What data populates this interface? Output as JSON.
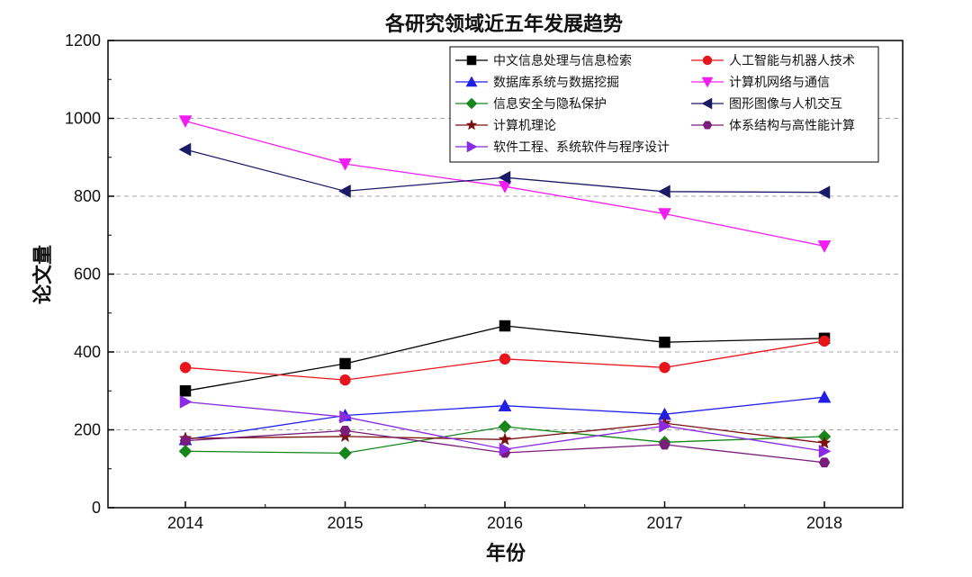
{
  "chart_data": {
    "type": "line",
    "title": "各研究领域近五年发展趋势",
    "xlabel": "年份",
    "ylabel": "论文量",
    "x": [
      "2014",
      "2015",
      "2016",
      "2017",
      "2018"
    ],
    "ylim": [
      0,
      1200
    ],
    "yticks": [
      0,
      200,
      400,
      600,
      800,
      1000,
      1200
    ],
    "grid": "horizontal dashed at major ticks",
    "legend_position": "top-right",
    "series": [
      {
        "name": "中文信息处理与信息检索",
        "color": "#000000",
        "marker": "square",
        "values": [
          300,
          370,
          467,
          425,
          435
        ]
      },
      {
        "name": "人工智能与机器人技术",
        "color": "#e8141b",
        "marker": "circle",
        "values": [
          360,
          328,
          382,
          360,
          428
        ]
      },
      {
        "name": "数据库系统与数据挖掘",
        "color": "#1f1fe8",
        "marker": "triangle-up",
        "values": [
          175,
          237,
          262,
          240,
          284
        ]
      },
      {
        "name": "计算机网络与通信",
        "color": "#f21df2",
        "marker": "triangle-down",
        "values": [
          993,
          883,
          825,
          755,
          672
        ]
      },
      {
        "name": "信息安全与隐私保护",
        "color": "#15871a",
        "marker": "diamond",
        "values": [
          145,
          140,
          208,
          168,
          183
        ]
      },
      {
        "name": "图形图像与人机交互",
        "color": "#1a1a66",
        "marker": "triangle-left",
        "values": [
          920,
          813,
          848,
          812,
          810
        ]
      },
      {
        "name": "计算机理论",
        "color": "#7a1010",
        "marker": "star",
        "values": [
          178,
          183,
          175,
          217,
          166
        ]
      },
      {
        "name": "体系结构与高性能计算",
        "color": "#7a1c7a",
        "marker": "hexagon",
        "values": [
          172,
          198,
          141,
          162,
          116
        ]
      },
      {
        "name": "软件工程、系统软件与程序设计",
        "color": "#8a2be2",
        "marker": "triangle-right",
        "values": [
          272,
          233,
          150,
          210,
          145
        ]
      }
    ]
  }
}
